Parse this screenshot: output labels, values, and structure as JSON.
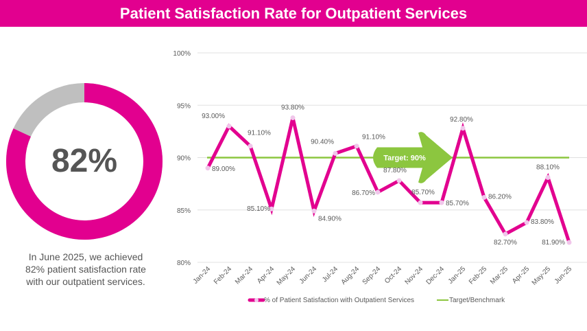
{
  "header": {
    "title": "Patient Satisfaction Rate for Outpatient Services"
  },
  "colors": {
    "accent": "#e2008f",
    "target": "#8cc63f",
    "marker": "#f0c6ea",
    "remainder": "#bfbfbf",
    "text": "#595959"
  },
  "kpi": {
    "value": 0.819,
    "label": "82%",
    "caption_lines": [
      "In June 2025, we achieved",
      "82% patient satisfaction rate",
      "with our outpatient services."
    ]
  },
  "chart_data": {
    "type": "line",
    "title": "",
    "xlabel": "",
    "ylabel": "",
    "ylim": [
      0.8,
      1.0
    ],
    "yticks": [
      0.8,
      0.85,
      0.9,
      0.95,
      1.0
    ],
    "ytick_labels": [
      "80%",
      "85%",
      "90%",
      "95%",
      "100%"
    ],
    "grid": true,
    "legend_position": "bottom",
    "categories": [
      "Jan-24",
      "Feb-24",
      "Mar-24",
      "Apr-24",
      "May-24",
      "Jun-24",
      "Jul-24",
      "Aug-24",
      "Sep-24",
      "Oct-24",
      "Nov-24",
      "Dec-24",
      "Jan-25",
      "Feb-25",
      "Mar-25",
      "Apr-25",
      "May-25",
      "Jun-25"
    ],
    "series": [
      {
        "name": "% of Patient Satisfaction with Outpatient Services",
        "values": [
          0.89,
          0.93,
          0.911,
          0.851,
          0.938,
          0.849,
          0.904,
          0.911,
          0.867,
          0.878,
          0.857,
          0.857,
          0.928,
          0.862,
          0.827,
          0.838,
          0.881,
          0.819
        ],
        "labels": [
          "89.00%",
          "93.00%",
          "91.10%",
          "85.10%",
          "93.80%",
          "84.90%",
          "90.40%",
          "91.10%",
          "86.70%",
          "87.80%",
          "85.70%",
          "85.70%",
          "92.80%",
          "86.20%",
          "82.70%",
          "83.80%",
          "88.10%",
          "81.90%"
        ]
      },
      {
        "name": "Target/Benchmark",
        "values": [
          0.9,
          0.9,
          0.9,
          0.9,
          0.9,
          0.9,
          0.9,
          0.9,
          0.9,
          0.9,
          0.9,
          0.9,
          0.9,
          0.9,
          0.9,
          0.9,
          0.9,
          0.9
        ]
      }
    ],
    "annotation": {
      "text": "Target: 90%",
      "value": 0.9
    }
  }
}
